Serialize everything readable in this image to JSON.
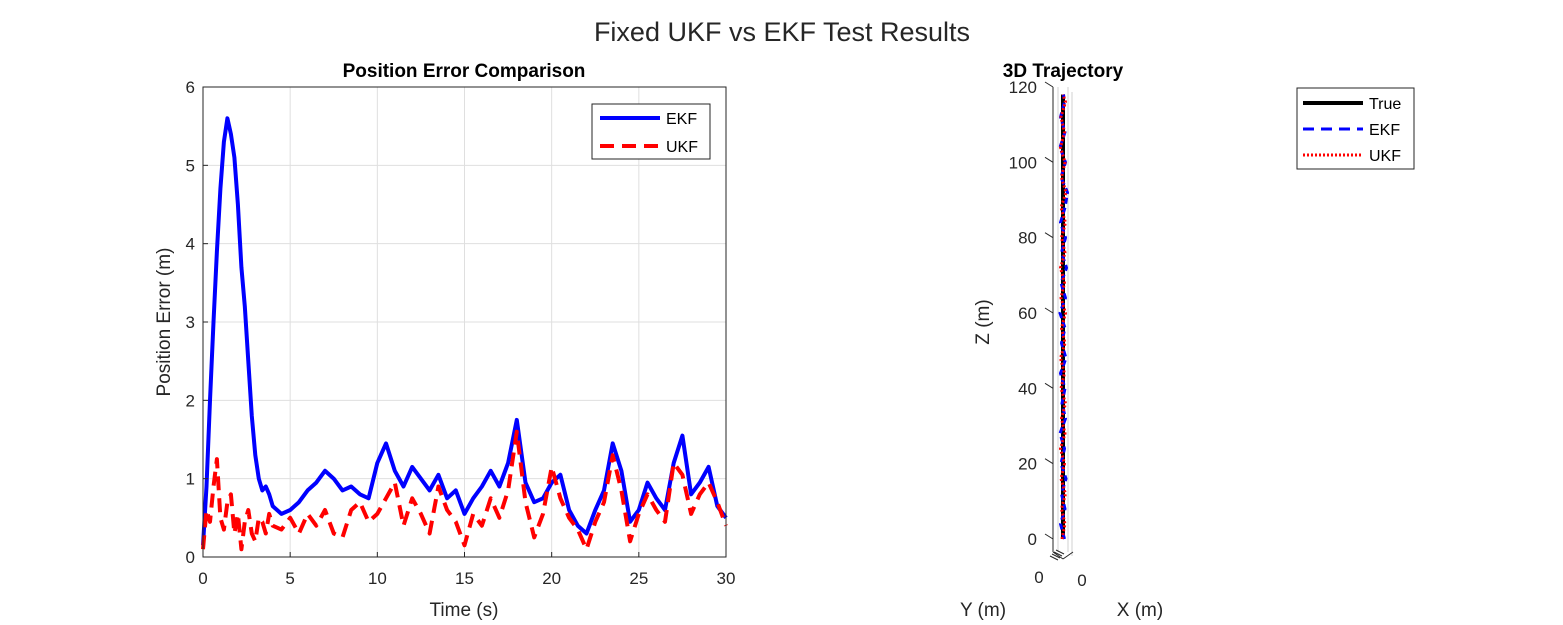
{
  "figure": {
    "suptitle": "Fixed UKF vs EKF Test Results"
  },
  "chart_data": [
    {
      "type": "line",
      "title": "Position Error Comparison",
      "xlabel": "Time (s)",
      "ylabel": "Position Error (m)",
      "xlim": [
        0,
        30
      ],
      "ylim": [
        0,
        6
      ],
      "xticks": [
        0,
        5,
        10,
        15,
        20,
        25,
        30
      ],
      "yticks": [
        0,
        1,
        2,
        3,
        4,
        5,
        6
      ],
      "grid": true,
      "legend_position": "top-right",
      "series": [
        {
          "name": "EKF",
          "color": "#0000ff",
          "style": "solid",
          "x": [
            0.0,
            0.2,
            0.4,
            0.6,
            0.8,
            1.0,
            1.2,
            1.4,
            1.6,
            1.8,
            2.0,
            2.2,
            2.4,
            2.6,
            2.8,
            3.0,
            3.2,
            3.4,
            3.6,
            3.8,
            4.0,
            4.5,
            5.0,
            5.5,
            6.0,
            6.5,
            7.0,
            7.5,
            8.0,
            8.5,
            9.0,
            9.5,
            10.0,
            10.5,
            11.0,
            11.5,
            12.0,
            12.5,
            13.0,
            13.5,
            14.0,
            14.5,
            15.0,
            15.5,
            16.0,
            16.5,
            17.0,
            17.5,
            18.0,
            18.5,
            19.0,
            19.5,
            20.0,
            20.5,
            21.0,
            21.5,
            22.0,
            22.5,
            23.0,
            23.5,
            24.0,
            24.5,
            25.0,
            25.5,
            26.0,
            26.5,
            27.0,
            27.5,
            28.0,
            28.5,
            29.0,
            29.5,
            30.0
          ],
          "values": [
            0.15,
            0.9,
            2.0,
            3.0,
            3.9,
            4.7,
            5.3,
            5.6,
            5.4,
            5.1,
            4.5,
            3.7,
            3.2,
            2.5,
            1.8,
            1.3,
            1.0,
            0.85,
            0.9,
            0.8,
            0.65,
            0.55,
            0.6,
            0.7,
            0.85,
            0.95,
            1.1,
            1.0,
            0.85,
            0.9,
            0.8,
            0.75,
            1.2,
            1.45,
            1.1,
            0.9,
            1.15,
            1.0,
            0.85,
            1.05,
            0.75,
            0.85,
            0.55,
            0.75,
            0.9,
            1.1,
            0.9,
            1.2,
            1.75,
            0.95,
            0.7,
            0.75,
            0.95,
            1.05,
            0.6,
            0.4,
            0.3,
            0.6,
            0.85,
            1.45,
            1.1,
            0.45,
            0.6,
            0.95,
            0.75,
            0.6,
            1.2,
            1.55,
            0.8,
            0.95,
            1.15,
            0.65,
            0.5
          ]
        },
        {
          "name": "UKF",
          "color": "#ff0000",
          "style": "dashed",
          "x": [
            0.0,
            0.2,
            0.4,
            0.6,
            0.8,
            1.0,
            1.2,
            1.4,
            1.6,
            1.8,
            2.0,
            2.2,
            2.4,
            2.6,
            2.8,
            3.0,
            3.2,
            3.4,
            3.6,
            3.8,
            4.0,
            4.5,
            5.0,
            5.5,
            6.0,
            6.5,
            7.0,
            7.5,
            8.0,
            8.5,
            9.0,
            9.5,
            10.0,
            10.5,
            11.0,
            11.5,
            12.0,
            12.5,
            13.0,
            13.5,
            14.0,
            14.5,
            15.0,
            15.5,
            16.0,
            16.5,
            17.0,
            17.5,
            18.0,
            18.5,
            19.0,
            19.5,
            20.0,
            20.5,
            21.0,
            21.5,
            22.0,
            22.5,
            23.0,
            23.5,
            24.0,
            24.5,
            25.0,
            25.5,
            26.0,
            26.5,
            27.0,
            27.5,
            28.0,
            28.5,
            29.0,
            29.5,
            30.0
          ],
          "values": [
            0.1,
            0.6,
            0.45,
            0.9,
            1.25,
            0.5,
            0.35,
            0.7,
            0.8,
            0.3,
            0.55,
            0.1,
            0.45,
            0.6,
            0.3,
            0.2,
            0.5,
            0.45,
            0.3,
            0.55,
            0.4,
            0.35,
            0.5,
            0.3,
            0.55,
            0.4,
            0.6,
            0.3,
            0.25,
            0.6,
            0.7,
            0.45,
            0.55,
            0.75,
            0.95,
            0.4,
            0.75,
            0.55,
            0.3,
            0.9,
            0.6,
            0.45,
            0.15,
            0.55,
            0.4,
            0.75,
            0.5,
            0.85,
            1.6,
            0.7,
            0.25,
            0.55,
            1.15,
            0.75,
            0.5,
            0.35,
            0.1,
            0.45,
            0.7,
            1.3,
            0.85,
            0.2,
            0.55,
            0.8,
            0.6,
            0.45,
            1.2,
            1.05,
            0.55,
            0.8,
            0.95,
            0.7,
            0.4
          ]
        }
      ]
    },
    {
      "type": "line",
      "subtype": "3d-trajectory",
      "title": "3D Trajectory",
      "xlabel": "X (m)",
      "ylabel": "Y (m)",
      "zlabel": "Z (m)",
      "zlim": [
        0,
        120
      ],
      "zticks": [
        0,
        20,
        40,
        60,
        80,
        100,
        120
      ],
      "xtick_labels": [
        "0"
      ],
      "ytick_labels": [
        "0"
      ],
      "grid": true,
      "legend_position": "outside-top-right",
      "series": [
        {
          "name": "True",
          "color": "#000000",
          "style": "solid",
          "z": [
            0,
            10,
            20,
            30,
            40,
            50,
            60,
            70,
            80,
            90,
            100,
            110,
            118
          ],
          "lateral": [
            0,
            0,
            0,
            0,
            0,
            0,
            0,
            0,
            0,
            0,
            0,
            0,
            0
          ]
        },
        {
          "name": "EKF",
          "color": "#0000ff",
          "style": "dashed",
          "z": [
            0,
            4,
            8,
            12,
            16,
            20,
            24,
            28,
            32,
            36,
            40,
            44,
            48,
            52,
            56,
            60,
            64,
            68,
            72,
            76,
            80,
            84,
            88,
            92,
            96,
            100,
            104,
            108,
            112,
            116,
            118
          ],
          "lateral": [
            0.3,
            -0.5,
            0.4,
            -0.3,
            0.6,
            -0.4,
            0.3,
            -0.6,
            0.5,
            -0.2,
            0.4,
            -0.5,
            0.6,
            -0.3,
            0.4,
            -0.6,
            0.5,
            -0.4,
            0.7,
            -0.3,
            0.5,
            -0.5,
            0.4,
            0.9,
            -0.4,
            0.5,
            -0.6,
            0.4,
            -0.5,
            0.3,
            0.1
          ]
        },
        {
          "name": "UKF",
          "color": "#ff0000",
          "style": "dotted",
          "z": [
            0,
            4,
            8,
            12,
            16,
            20,
            24,
            28,
            32,
            36,
            40,
            44,
            48,
            52,
            56,
            60,
            64,
            68,
            72,
            76,
            80,
            84,
            88,
            92,
            96,
            100,
            104,
            108,
            112,
            116,
            118
          ],
          "lateral": [
            -0.2,
            0.4,
            -0.3,
            0.5,
            -0.4,
            0.3,
            -0.5,
            0.4,
            -0.3,
            0.5,
            -0.4,
            0.3,
            -0.5,
            0.4,
            -0.3,
            0.5,
            -0.4,
            0.3,
            -0.5,
            0.4,
            -0.3,
            0.5,
            -0.4,
            0.6,
            -0.3,
            0.4,
            -0.5,
            0.3,
            -0.4,
            0.5,
            0.0
          ]
        }
      ]
    }
  ]
}
